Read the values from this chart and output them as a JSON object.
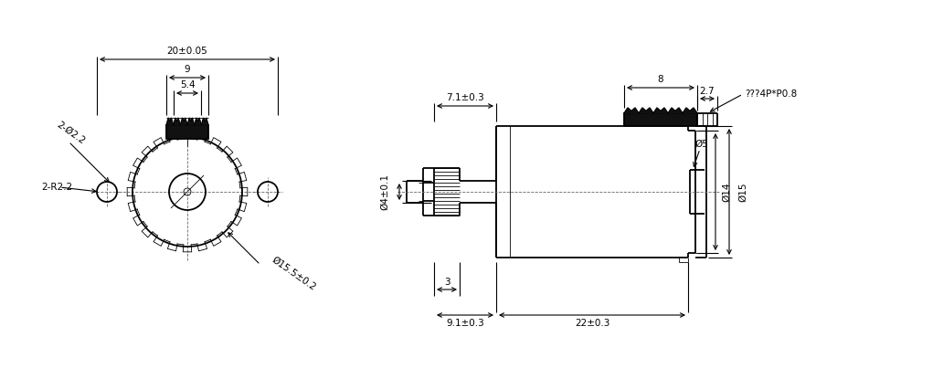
{
  "bg_color": "#ffffff",
  "line_color": "#000000",
  "fill_dark": "#111111",
  "dimensions_left": {
    "outer_diameter": "20±0.05",
    "gear_width": "9",
    "shaft_width": "5.4",
    "hole_label": "2-Ø2.2",
    "boss_label": "2-R2.2",
    "body_diameter": "Ø15.5±0.2"
  },
  "dimensions_right": {
    "shaft_len": "7.1±0.3",
    "gear_pos": "3",
    "total_gear": "9.1±0.3",
    "body_len": "22±0.3",
    "shaft_dia": "Ø4±0.1",
    "connector_width": "8",
    "connector_thread": "2.7",
    "thread_label": "???4P*P0.8",
    "d5": "Ø5",
    "d14": "Ø14",
    "d15": "Ø15"
  }
}
